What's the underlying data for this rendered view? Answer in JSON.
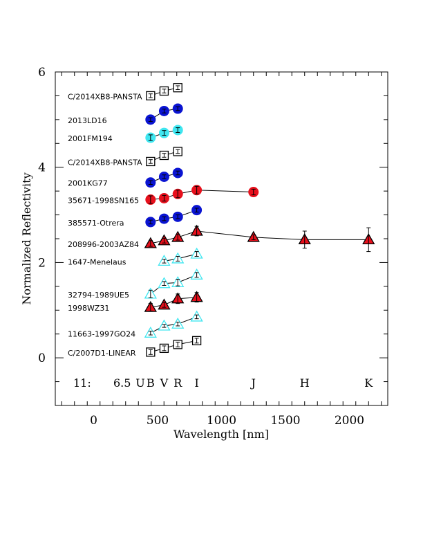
{
  "chart_data": {
    "type": "scatter",
    "xlabel": "Wavelength [nm]",
    "ylabel": "Normalized Reflectivity",
    "xlim": [
      -300,
      2300
    ],
    "ylim": [
      -1,
      6
    ],
    "x_ticks": [
      0,
      500,
      1000,
      1500,
      2000
    ],
    "y_ticks": [
      0,
      2,
      4,
      6
    ],
    "x_tick_labels": [
      "0",
      "500",
      "1000",
      "1500",
      "2000"
    ],
    "y_tick_labels": [
      "0",
      "2",
      "4",
      "6"
    ],
    "grid": false,
    "bands": [
      {
        "label": "U",
        "x": 365
      },
      {
        "label": "B",
        "x": 445
      },
      {
        "label": "V",
        "x": 551
      },
      {
        "label": "R",
        "x": 658
      },
      {
        "label": "I",
        "x": 806
      },
      {
        "label": "J",
        "x": 1250
      },
      {
        "label": "H",
        "x": 1650
      },
      {
        "label": "K",
        "x": 2150
      }
    ],
    "annotation": {
      "left": "11:",
      "right": "6.5"
    },
    "series": [
      {
        "name": "C/2014XB8-PANSTA",
        "marker": "square",
        "color": "#ffffff",
        "edge": "#000000",
        "points": [
          {
            "x": 445,
            "y": 5.5,
            "err": 0.04
          },
          {
            "x": 551,
            "y": 5.6,
            "err": 0.04
          },
          {
            "x": 658,
            "y": 5.67,
            "err": 0.04
          }
        ]
      },
      {
        "name": "2013LD16",
        "marker": "circle",
        "color": "#0a14d2",
        "edge": "#0a14d2",
        "points": [
          {
            "x": 445,
            "y": 5.0,
            "err": 0.04
          },
          {
            "x": 551,
            "y": 5.18,
            "err": 0.04
          },
          {
            "x": 658,
            "y": 5.23,
            "err": 0.04
          }
        ]
      },
      {
        "name": "2001FM194",
        "marker": "circle",
        "color": "#3fe6f0",
        "edge": "#3fe6f0",
        "points": [
          {
            "x": 445,
            "y": 4.62,
            "err": 0.06
          },
          {
            "x": 551,
            "y": 4.72,
            "err": 0.05
          },
          {
            "x": 658,
            "y": 4.78,
            "err": 0.05
          }
        ]
      },
      {
        "name": "C/2014XB8-PANSTA",
        "marker": "square",
        "color": "#ffffff",
        "edge": "#000000",
        "points": [
          {
            "x": 445,
            "y": 4.12,
            "err": 0.04
          },
          {
            "x": 551,
            "y": 4.25,
            "err": 0.04
          },
          {
            "x": 658,
            "y": 4.33,
            "err": 0.04
          }
        ]
      },
      {
        "name": "2001KG77",
        "marker": "circle",
        "color": "#0a14d2",
        "edge": "#0a14d2",
        "points": [
          {
            "x": 445,
            "y": 3.68,
            "err": 0.04
          },
          {
            "x": 551,
            "y": 3.8,
            "err": 0.04
          },
          {
            "x": 658,
            "y": 3.88,
            "err": 0.04
          }
        ]
      },
      {
        "name": "35671-1998SN165",
        "marker": "circle",
        "color": "#e8101c",
        "edge": "#e8101c",
        "points": [
          {
            "x": 445,
            "y": 3.32,
            "err": 0.08
          },
          {
            "x": 551,
            "y": 3.35,
            "err": 0.06
          },
          {
            "x": 658,
            "y": 3.44,
            "err": 0.08
          },
          {
            "x": 806,
            "y": 3.52,
            "err": 0.08
          },
          {
            "x": 1250,
            "y": 3.48,
            "err": 0.06
          }
        ]
      },
      {
        "name": "385571-Otrera",
        "marker": "circle",
        "color": "#0a14d2",
        "edge": "#0a14d2",
        "points": [
          {
            "x": 445,
            "y": 2.85,
            "err": 0.04
          },
          {
            "x": 551,
            "y": 2.92,
            "err": 0.04
          },
          {
            "x": 658,
            "y": 2.96,
            "err": 0.04
          },
          {
            "x": 806,
            "y": 3.1,
            "err": 0.04
          }
        ]
      },
      {
        "name": "208996-2003AZ84",
        "marker": "triangle",
        "color": "#e8101c",
        "edge": "#000000",
        "points": [
          {
            "x": 445,
            "y": 2.4,
            "err": 0.06
          },
          {
            "x": 551,
            "y": 2.46,
            "err": 0.05
          },
          {
            "x": 658,
            "y": 2.53,
            "err": 0.06
          },
          {
            "x": 806,
            "y": 2.66,
            "err": 0.1
          },
          {
            "x": 1250,
            "y": 2.53,
            "err": 0.05
          },
          {
            "x": 1650,
            "y": 2.48,
            "err": 0.18
          },
          {
            "x": 2150,
            "y": 2.48,
            "err": 0.25
          }
        ]
      },
      {
        "name": "1647-Menelaus",
        "marker": "triangle",
        "color": "#ffffff",
        "edge": "#3fe6f0",
        "points": [
          {
            "x": 551,
            "y": 2.03,
            "err": 0.04
          },
          {
            "x": 658,
            "y": 2.08,
            "err": 0.05
          },
          {
            "x": 806,
            "y": 2.18,
            "err": 0.05
          }
        ]
      },
      {
        "name": "32794-1989UE5",
        "marker": "triangle",
        "color": "#ffffff",
        "edge": "#3fe6f0",
        "points": [
          {
            "x": 445,
            "y": 1.34,
            "err": 0.08
          },
          {
            "x": 551,
            "y": 1.56,
            "err": 0.04
          },
          {
            "x": 658,
            "y": 1.58,
            "err": 0.07
          },
          {
            "x": 806,
            "y": 1.74,
            "err": 0.05
          }
        ]
      },
      {
        "name": "1998WZ31",
        "marker": "triangle",
        "color": "#e8101c",
        "edge": "#000000",
        "points": [
          {
            "x": 445,
            "y": 1.06,
            "err": 0.08
          },
          {
            "x": 551,
            "y": 1.11,
            "err": 0.05
          },
          {
            "x": 658,
            "y": 1.24,
            "err": 0.1
          },
          {
            "x": 806,
            "y": 1.27,
            "err": 0.1
          }
        ]
      },
      {
        "name": "11663-1997GO24",
        "marker": "triangle",
        "color": "#ffffff",
        "edge": "#3fe6f0",
        "points": [
          {
            "x": 445,
            "y": 0.52,
            "err": 0.04
          },
          {
            "x": 551,
            "y": 0.67,
            "err": 0.03
          },
          {
            "x": 658,
            "y": 0.71,
            "err": 0.04
          },
          {
            "x": 806,
            "y": 0.86,
            "err": 0.04
          }
        ]
      },
      {
        "name": "C/2007D1-LINEAR",
        "marker": "square",
        "color": "#ffffff",
        "edge": "#000000",
        "points": [
          {
            "x": 445,
            "y": 0.12,
            "err": 0.05
          },
          {
            "x": 551,
            "y": 0.2,
            "err": 0.05
          },
          {
            "x": 658,
            "y": 0.28,
            "err": 0.05
          },
          {
            "x": 806,
            "y": 0.36,
            "err": 0.05
          }
        ]
      }
    ]
  }
}
